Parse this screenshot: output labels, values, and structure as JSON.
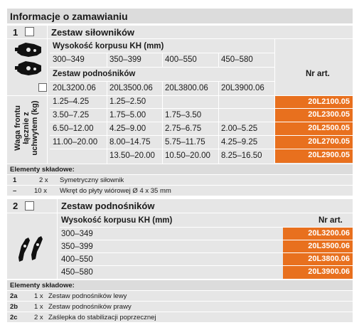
{
  "title": "Informacje o zamawianiu",
  "section1": {
    "number": "1",
    "set_name": "Zestaw siłowników",
    "kh_header": "Wysokość korpusu KH (mm)",
    "kh_values": [
      "300–349",
      "350–399",
      "400–550",
      "450–580"
    ],
    "lift_set": "Zestaw podnośników",
    "nr_art": "Nr art.",
    "lift_codes": [
      "20L3200.06",
      "20L3500.06",
      "20L3800.06",
      "20L3900.06"
    ],
    "weight_label": "Waga frontu łącznie z uchwytem (kg)",
    "rows": [
      {
        "c": [
          "1.25–4.25",
          "1.25–2.50",
          "",
          ""
        ],
        "art": "20L2100.05"
      },
      {
        "c": [
          "3.50–7.25",
          "1.75–5.00",
          "1.75–3.50",
          ""
        ],
        "art": "20L2300.05"
      },
      {
        "c": [
          "6.50–12.00",
          "4.25–9.00",
          "2.75–6.75",
          "2.00–5.25"
        ],
        "art": "20L2500.05"
      },
      {
        "c": [
          "11.00–20.00",
          "8.00–14.75",
          "5.75–11.75",
          "4.25–9.25"
        ],
        "art": "20L2700.05"
      },
      {
        "c": [
          "",
          "13.50–20.00",
          "10.50–20.00",
          "8.25–16.50"
        ],
        "art": "20L2900.05"
      }
    ],
    "elements_title": "Elementy składowe:",
    "elements": [
      {
        "id": "1",
        "qty": "2 x",
        "desc": "Symetryczny siłownik"
      },
      {
        "id": "–",
        "qty": "10 x",
        "desc": "Wkręt do płyty wiórowej Ø 4 x 35 mm"
      }
    ]
  },
  "section2": {
    "number": "2",
    "set_name": "Zestaw podnośników",
    "kh_header": "Wysokość korpusu KH (mm)",
    "nr_art": "Nr art.",
    "rows": [
      {
        "kh": "300–349",
        "art": "20L3200.06"
      },
      {
        "kh": "350–399",
        "art": "20L3500.06"
      },
      {
        "kh": "400–550",
        "art": "20L3800.06"
      },
      {
        "kh": "450–580",
        "art": "20L3900.06"
      }
    ],
    "elements_title": "Elementy składowe:",
    "elements": [
      {
        "id": "2a",
        "qty": "1 x",
        "desc": "Zestaw podnośników lewy"
      },
      {
        "id": "2b",
        "qty": "1 x",
        "desc": "Zestaw podnośników prawy"
      },
      {
        "id": "2c",
        "qty": "2 x",
        "desc": "Zaślepka do stabilizacji poprzecznej"
      }
    ]
  },
  "colors": {
    "accent": "#e8701e",
    "panel": "#e6e6e6"
  }
}
